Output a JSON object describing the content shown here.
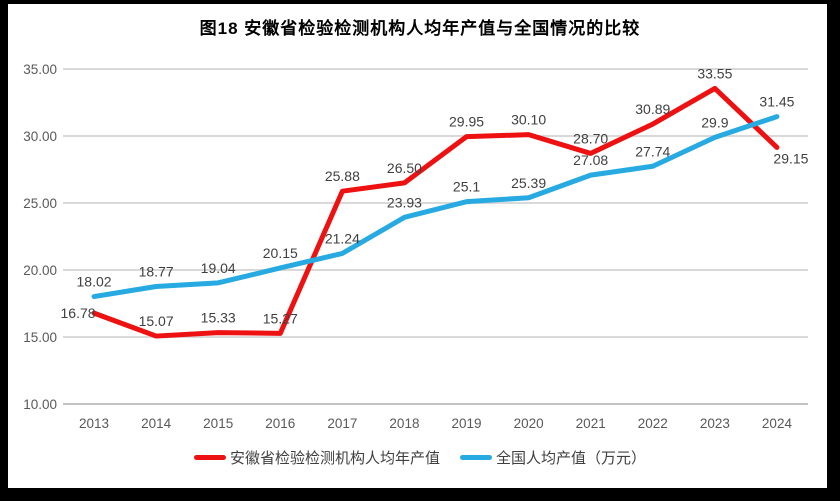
{
  "title": "图18 安徽省检验检测机构人均年产值与全国情况的比较",
  "chart_data": {
    "type": "line",
    "categories": [
      "2013",
      "2014",
      "2015",
      "2016",
      "2017",
      "2018",
      "2019",
      "2020",
      "2021",
      "2022",
      "2023",
      "2024"
    ],
    "series": [
      {
        "name": "安徽省检验检测机构人均年产值",
        "color": "#ed1111",
        "values": [
          16.78,
          15.07,
          15.33,
          15.27,
          25.88,
          26.5,
          29.95,
          30.1,
          28.7,
          30.89,
          33.55,
          29.15
        ],
        "labels": [
          "16.78",
          "15.07",
          "15.33",
          "15.27",
          "25.88",
          "26.50",
          "29.95",
          "30.10",
          "28.70",
          "30.89",
          "33.55",
          "29.15"
        ]
      },
      {
        "name": "全国人均产值（万元）",
        "color": "#27aae1",
        "values": [
          18.02,
          18.77,
          19.04,
          20.15,
          21.24,
          23.93,
          25.1,
          25.39,
          27.08,
          27.74,
          29.9,
          31.45
        ],
        "labels": [
          "18.02",
          "18.77",
          "19.04",
          "20.15",
          "21.24",
          "23.93",
          "25.1",
          "25.39",
          "27.08",
          "27.74",
          "29.9",
          "31.45"
        ]
      }
    ],
    "xlabel": "",
    "ylabel": "",
    "ylim": [
      10,
      35
    ],
    "ytick_step": 5,
    "yticks": [
      "10.00",
      "15.00",
      "20.00",
      "25.00",
      "30.00",
      "35.00"
    ],
    "grid": true,
    "legend_position": "bottom"
  },
  "colors": {
    "frame_border": "#000000",
    "background": "#ffffff",
    "gridline": "#d9d9d9",
    "axis_line": "#c3c3c3",
    "axis_text": "#595959",
    "data_label": "#404040",
    "title_text": "#000000",
    "legend_text": "#404040"
  }
}
